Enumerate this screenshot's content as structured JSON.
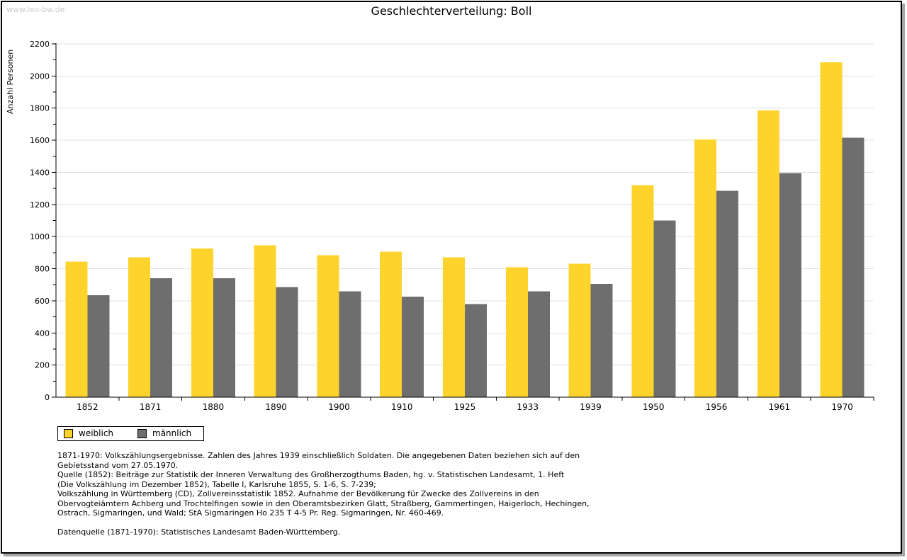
{
  "watermark": "www.leo-bw.de",
  "chart_data": {
    "type": "bar",
    "title": "Geschlechterverteilung: Boll",
    "ylabel": "Anzahl Personen",
    "xlabel": "",
    "categories": [
      "1852",
      "1871",
      "1880",
      "1890",
      "1900",
      "1910",
      "1925",
      "1933",
      "1939",
      "1950",
      "1956",
      "1961",
      "1970"
    ],
    "series": [
      {
        "name": "weiblich",
        "color": "#FDD32C",
        "values": [
          845,
          870,
          925,
          945,
          885,
          905,
          870,
          810,
          830,
          1320,
          1605,
          1785,
          2085
        ]
      },
      {
        "name": "männlich",
        "color": "#6E6E6E",
        "values": [
          635,
          740,
          740,
          685,
          660,
          625,
          580,
          660,
          705,
          1100,
          1285,
          1395,
          1615
        ]
      }
    ],
    "ylim": [
      0,
      2200
    ],
    "ytick_step": 200,
    "ytick_minor_step": 100,
    "yticks": [
      0,
      200,
      400,
      600,
      800,
      1000,
      1200,
      1400,
      1600,
      1800,
      2000,
      2200
    ],
    "grid": true,
    "gridline_color": "#e0e0e0",
    "axis_color": "#000000",
    "legend_position": "bottom-left"
  },
  "footnotes": {
    "lines": [
      "1871-1970: Volkszählungsergebnisse. Zahlen des Jahres 1939 einschließlich Soldaten. Die angegebenen Daten beziehen sich auf den",
      "Gebietsstand vom 27.05.1970.",
      "Quelle (1852): Beiträge zur Statistik der Inneren Verwaltung des Großherzogthums Baden, hg. v. Statistischen Landesamt, 1. Heft",
      "(Die Volkszählung im Dezember 1852), Tabelle I, Karlsruhe 1855, S. 1-6, S. 7-239;",
      "Volkszählung in Württemberg (CD), Zollvereinsstatistik 1852. Aufnahme der Bevölkerung für Zwecke des Zollvereins in den",
      "Obervogteiämtern Achberg und Trochtelfingen sowie in den Oberamtsbezirken Glatt, Straßberg, Gammertingen, Haigerloch, Hechingen,",
      "Ostrach, Sigmaringen, und Wald; StA Sigmaringen Ho 235 T 4-5 Pr. Reg. Sigmaringen, Nr. 460-469.",
      "",
      "Datenquelle (1871-1970): Statistisches Landesamt Baden-Württemberg."
    ]
  }
}
